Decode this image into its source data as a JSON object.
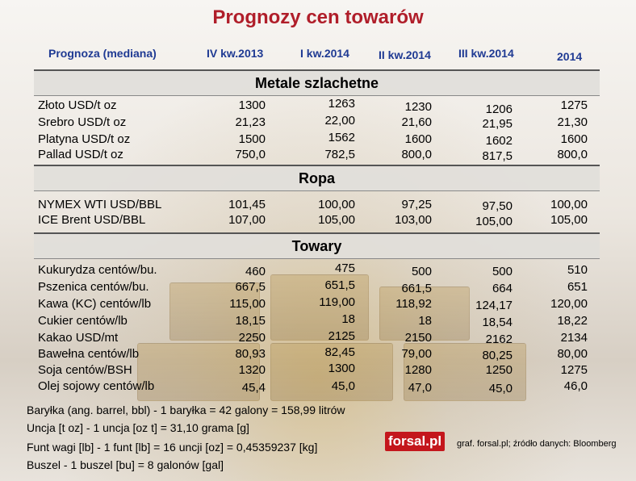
{
  "title": "Prognozy cen towarów",
  "header": {
    "label": "Prognoza (mediana)",
    "columns": [
      "IV kw.2013",
      "I kw.2014",
      "II kw.2014",
      "III kw.2014",
      "2014"
    ]
  },
  "sections": [
    {
      "name": "Metale szlachetne",
      "rows": [
        {
          "label": "Złoto USD/t oz",
          "values": [
            "1300",
            "1263",
            "1230",
            "1206",
            "1275"
          ]
        },
        {
          "label": "Srebro USD/t oz",
          "values": [
            "21,23",
            "22,00",
            "21,60",
            "21,95",
            "21,30"
          ]
        },
        {
          "label": "Platyna USD/t oz",
          "values": [
            "1500",
            "1562",
            "1600",
            "1602",
            "1600"
          ]
        },
        {
          "label": "Pallad USD/t oz",
          "values": [
            "750,0",
            "782,5",
            "800,0",
            "817,5",
            "800,0"
          ]
        }
      ]
    },
    {
      "name": "Ropa",
      "rows": [
        {
          "label": "NYMEX WTI USD/BBL",
          "values": [
            "101,45",
            "100,00",
            "97,25",
            "97,50",
            "100,00"
          ]
        },
        {
          "label": "ICE Brent USD/BBL",
          "values": [
            "107,00",
            "105,00",
            "103,00",
            "105,00",
            "105,00"
          ]
        }
      ]
    },
    {
      "name": "Towary",
      "rows": [
        {
          "label": "Kukurydza centów/bu.",
          "values": [
            "460",
            "475",
            "500",
            "500",
            "510"
          ]
        },
        {
          "label": "Pszenica centów/bu.",
          "values": [
            "667,5",
            "651,5",
            "661,5",
            "664",
            "651"
          ]
        },
        {
          "label": "Kawa (KC) centów/lb",
          "values": [
            "115,00",
            "119,00",
            "118,92",
            "124,17",
            "120,00"
          ]
        },
        {
          "label": "Cukier centów/lb",
          "values": [
            "18,15",
            "18",
            "18",
            "18,54",
            "18,22"
          ]
        },
        {
          "label": "Kakao USD/mt",
          "values": [
            "2250",
            "2125",
            "2150",
            "2162",
            "2134"
          ]
        },
        {
          "label": "Bawełna centów/lb",
          "values": [
            "80,93",
            "82,45",
            "79,00",
            "80,25",
            "80,00"
          ]
        },
        {
          "label": "Soja centów/BSH",
          "values": [
            "1320",
            "1300",
            "1280",
            "1250",
            "1275"
          ]
        },
        {
          "label": "Olej sojowy centów/lb",
          "values": [
            "45,4",
            "45,0",
            "47,0",
            "45,0",
            "46,0"
          ]
        }
      ]
    }
  ],
  "notes": [
    "Baryłka (ang. barrel, bbl) - 1 baryłka = 42 galony = 158,99 litrów",
    "Uncja [t oz] - 1 uncja [oz t] = 31,10 grama [g]",
    "Funt wagi [lb] - 1 funt [lb] = 16 uncji [oz] = 0,45359237 [kg]",
    "Buszel - 1 buszel [bu] = 8 galonów [gal]"
  ],
  "logo": "forsal.pl",
  "source": "graf. forsal.pl;  źródło danych: Bloomberg"
}
